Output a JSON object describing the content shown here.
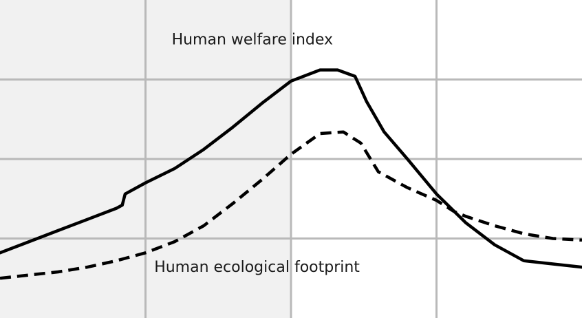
{
  "chart_data": {
    "type": "line",
    "title": "",
    "xlabel": "",
    "ylabel": "",
    "xlim": [
      0,
      100
    ],
    "ylim": [
      0,
      100
    ],
    "grid": true,
    "legend": "none",
    "shaded_region": {
      "x_start": 0,
      "x_end": 50,
      "color": "#f1f1f1"
    },
    "series": [
      {
        "name": "Human welfare index",
        "style": "solid",
        "color": "#000000",
        "points": [
          [
            0,
            20.5
          ],
          [
            5,
            24
          ],
          [
            10,
            27.5
          ],
          [
            15,
            31
          ],
          [
            20,
            34.5
          ],
          [
            21,
            35.5
          ],
          [
            21.5,
            39
          ],
          [
            25,
            42.5
          ],
          [
            30,
            47
          ],
          [
            35,
            53
          ],
          [
            40,
            60
          ],
          [
            45,
            67.5
          ],
          [
            50,
            74.5
          ],
          [
            55,
            78
          ],
          [
            58,
            78
          ],
          [
            61,
            76
          ],
          [
            63,
            68
          ],
          [
            66,
            58.5
          ],
          [
            70,
            50
          ],
          [
            75,
            39
          ],
          [
            80,
            30
          ],
          [
            85,
            23
          ],
          [
            90,
            18
          ],
          [
            95,
            17
          ],
          [
            100,
            16
          ]
        ]
      },
      {
        "name": "Human ecological footprint",
        "style": "dashed",
        "color": "#000000",
        "points": [
          [
            0,
            12.5
          ],
          [
            5,
            13.5
          ],
          [
            10,
            14.5
          ],
          [
            15,
            16
          ],
          [
            20,
            18
          ],
          [
            25,
            20.5
          ],
          [
            30,
            24
          ],
          [
            35,
            29
          ],
          [
            40,
            36
          ],
          [
            45,
            43.5
          ],
          [
            50,
            51.5
          ],
          [
            55,
            58
          ],
          [
            59,
            58.5
          ],
          [
            62,
            55
          ],
          [
            65,
            46
          ],
          [
            70,
            41
          ],
          [
            75,
            37
          ],
          [
            78,
            33.5
          ],
          [
            80,
            32
          ],
          [
            85,
            29
          ],
          [
            90,
            26.5
          ],
          [
            95,
            25
          ],
          [
            100,
            24.5
          ]
        ]
      }
    ],
    "annotations": [
      {
        "text": "Human welfare index",
        "x": 29.5,
        "y": 86
      },
      {
        "text": "Human ecological footprint",
        "x": 26.5,
        "y": 14.5
      }
    ]
  }
}
